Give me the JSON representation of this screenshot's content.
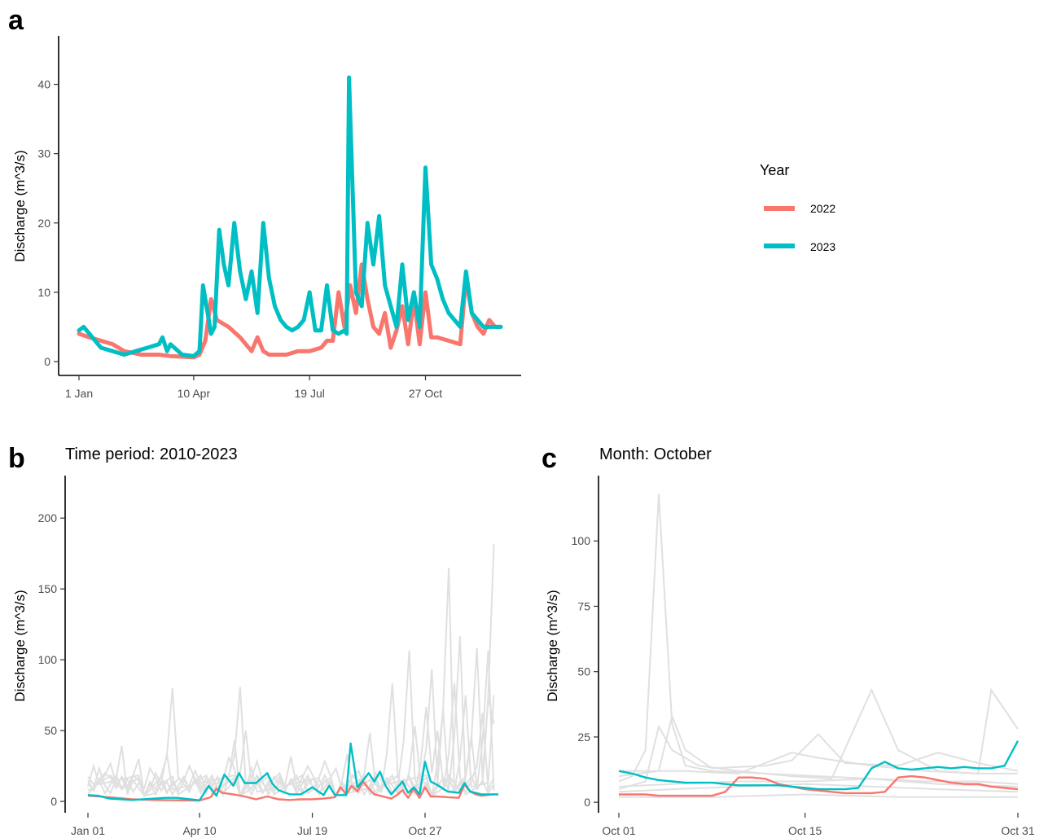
{
  "colors": {
    "y2022": "#F8766D",
    "y2023": "#00BFC4",
    "background_years": "#E0E0E0"
  },
  "legend": {
    "title": "Year",
    "items": [
      "2022",
      "2023"
    ]
  },
  "chart_data": [
    {
      "panel": "a",
      "type": "line",
      "title": "",
      "xlabel": "",
      "ylabel": "Discharge (m^3/s)",
      "x_ticks": [
        "1 Jan",
        "10 Apr",
        "19 Jul",
        "27 Oct"
      ],
      "x_tick_days": [
        1,
        100,
        200,
        300
      ],
      "xlim": [
        1,
        365
      ],
      "y_ticks": [
        0,
        10,
        20,
        30,
        40
      ],
      "ylim": [
        -2,
        47
      ],
      "legend_position": "right",
      "series": [
        {
          "name": "2022",
          "x": [
            1,
            10,
            20,
            30,
            40,
            55,
            70,
            80,
            90,
            100,
            105,
            110,
            115,
            120,
            130,
            140,
            150,
            155,
            160,
            165,
            170,
            180,
            190,
            200,
            210,
            215,
            220,
            225,
            230,
            235,
            240,
            245,
            250,
            255,
            260,
            265,
            270,
            275,
            280,
            285,
            290,
            295,
            300,
            305,
            310,
            320,
            330,
            335,
            340,
            345,
            350,
            355,
            360,
            365
          ],
          "y": [
            4,
            3.5,
            3,
            2.5,
            1.5,
            1,
            1,
            0.8,
            0.7,
            0.6,
            1,
            3,
            9,
            6,
            5,
            3.5,
            1.5,
            3.5,
            1.5,
            1,
            1,
            1,
            1.5,
            1.5,
            2,
            3,
            3,
            10,
            5,
            11,
            7,
            14,
            9,
            5,
            4,
            7,
            2,
            4.5,
            8,
            2.5,
            9,
            2.5,
            10,
            3.5,
            3.5,
            3,
            2.5,
            12,
            7,
            5,
            4,
            6,
            5,
            5
          ]
        },
        {
          "name": "2023",
          "x": [
            1,
            5,
            10,
            20,
            30,
            40,
            50,
            60,
            70,
            73,
            77,
            80,
            90,
            100,
            105,
            108,
            112,
            115,
            118,
            122,
            126,
            130,
            135,
            140,
            145,
            150,
            155,
            160,
            165,
            170,
            175,
            180,
            185,
            190,
            195,
            200,
            205,
            210,
            215,
            220,
            225,
            230,
            232,
            234,
            240,
            245,
            250,
            255,
            260,
            265,
            270,
            275,
            280,
            285,
            290,
            295,
            300,
            305,
            310,
            315,
            320,
            325,
            330,
            335,
            340,
            345,
            350,
            355,
            360,
            365
          ],
          "y": [
            4.5,
            5,
            4,
            2,
            1.5,
            1,
            1.5,
            2,
            2.5,
            3.5,
            1.5,
            2.5,
            1,
            0.8,
            1.5,
            11,
            7,
            4,
            5,
            19,
            14,
            11,
            20,
            13,
            9,
            13,
            7,
            20,
            12,
            8,
            6,
            5,
            4.5,
            5,
            6,
            10,
            4.5,
            4.5,
            11,
            4.5,
            4,
            4.5,
            4,
            41,
            10,
            8,
            20,
            14,
            21,
            11,
            8,
            5,
            14,
            6,
            10,
            5,
            28,
            14,
            12,
            9,
            7,
            6,
            5,
            13,
            7,
            6,
            5,
            5,
            5,
            5
          ]
        }
      ]
    },
    {
      "panel": "b",
      "type": "line",
      "title": "Time period: 2010-2023",
      "xlabel": "",
      "ylabel": "Discharge (m^3/s)",
      "x_ticks": [
        "Jan 01",
        "Apr 10",
        "Jul 19",
        "Oct 27"
      ],
      "x_tick_days": [
        1,
        100,
        200,
        300
      ],
      "xlim": [
        1,
        365
      ],
      "y_ticks": [
        0,
        50,
        100,
        150,
        200
      ],
      "ylim": [
        -8,
        230
      ],
      "background_peaks": [
        [
          [
            10,
            28
          ],
          [
            30,
            47
          ],
          [
            75,
            96
          ],
          [
            130,
            52
          ],
          [
            180,
            38
          ],
          [
            250,
            58
          ],
          [
            305,
            112
          ],
          [
            345,
            130
          ],
          [
            360,
            218
          ]
        ],
        [
          [
            15,
            24
          ],
          [
            45,
            36
          ],
          [
            90,
            30
          ],
          [
            135,
            97
          ],
          [
            195,
            30
          ],
          [
            270,
            100
          ],
          [
            320,
            198
          ],
          [
            350,
            75
          ]
        ],
        [
          [
            8,
            18
          ],
          [
            55,
            28
          ],
          [
            110,
            20
          ],
          [
            128,
            46
          ],
          [
            150,
            34
          ],
          [
            230,
            40
          ],
          [
            285,
            128
          ],
          [
            330,
            140
          ]
        ],
        [
          [
            20,
            32
          ],
          [
            40,
            22
          ],
          [
            85,
            18
          ],
          [
            140,
            60
          ],
          [
            172,
            24
          ],
          [
            240,
            26
          ],
          [
            300,
            80
          ],
          [
            310,
            60
          ],
          [
            340,
            55
          ],
          [
            355,
            128
          ]
        ],
        [
          [
            25,
            16
          ],
          [
            60,
            24
          ],
          [
            102,
            18
          ],
          [
            118,
            20
          ],
          [
            190,
            22
          ],
          [
            222,
            28
          ],
          [
            290,
            64
          ],
          [
            325,
            100
          ],
          [
            358,
            110
          ]
        ],
        [
          [
            5,
            30
          ],
          [
            70,
            40
          ],
          [
            95,
            26
          ],
          [
            145,
            28
          ],
          [
            210,
            34
          ],
          [
            258,
            30
          ],
          [
            315,
            78
          ],
          [
            335,
            90
          ],
          [
            362,
            90
          ]
        ]
      ],
      "series": [
        {
          "name": "2022",
          "x": [
            1,
            20,
            40,
            60,
            80,
            100,
            110,
            115,
            120,
            130,
            140,
            150,
            160,
            170,
            180,
            190,
            200,
            210,
            220,
            225,
            230,
            235,
            240,
            245,
            250,
            255,
            260,
            270,
            275,
            280,
            285,
            290,
            295,
            300,
            305,
            310,
            320,
            330,
            335,
            340,
            345,
            350,
            360,
            365
          ],
          "y": [
            4,
            3,
            1.5,
            1,
            0.8,
            0.6,
            3,
            9,
            6,
            5,
            3.5,
            1.5,
            3.5,
            1.5,
            1,
            1.5,
            1.5,
            2,
            3,
            10,
            5,
            11,
            7,
            14,
            9,
            5,
            4,
            2,
            4.5,
            8,
            2.5,
            9,
            2.5,
            10,
            3.5,
            3.5,
            3,
            2.5,
            12,
            7,
            5,
            4,
            5,
            5
          ]
        },
        {
          "name": "2023",
          "x": [
            1,
            10,
            20,
            40,
            60,
            70,
            80,
            100,
            108,
            115,
            122,
            130,
            135,
            140,
            150,
            160,
            165,
            170,
            180,
            190,
            200,
            210,
            215,
            220,
            230,
            234,
            240,
            250,
            255,
            260,
            265,
            270,
            280,
            285,
            290,
            295,
            300,
            305,
            310,
            320,
            330,
            335,
            340,
            350,
            360,
            365
          ],
          "y": [
            4.5,
            4,
            2,
            1,
            2,
            2.5,
            2.5,
            0.8,
            11,
            4,
            19,
            11,
            20,
            13,
            13,
            20,
            12,
            8,
            5,
            5,
            10,
            4.5,
            11,
            4.5,
            4.5,
            41,
            10,
            20,
            14,
            21,
            11,
            5,
            14,
            6,
            10,
            5,
            28,
            14,
            12,
            7,
            6,
            13,
            7,
            5,
            5,
            5
          ]
        }
      ]
    },
    {
      "panel": "c",
      "type": "line",
      "title": "Month: October",
      "xlabel": "",
      "ylabel": "Discharge (m^3/s)",
      "x_ticks": [
        "Oct 01",
        "Oct 15",
        "Oct 31"
      ],
      "x_tick_days": [
        1,
        15,
        31
      ],
      "xlim": [
        1,
        31
      ],
      "y_ticks": [
        0,
        25,
        50,
        75,
        100
      ],
      "ylim": [
        -4,
        125
      ],
      "background_series": [
        [
          [
            1,
            8
          ],
          [
            2,
            10
          ],
          [
            3,
            20
          ],
          [
            4,
            118
          ],
          [
            5,
            30
          ],
          [
            6,
            14
          ],
          [
            8,
            12
          ],
          [
            12,
            11
          ],
          [
            16,
            10
          ],
          [
            20,
            9
          ],
          [
            24,
            8
          ],
          [
            28,
            8
          ],
          [
            31,
            7
          ]
        ],
        [
          [
            1,
            5
          ],
          [
            3,
            8
          ],
          [
            4,
            29
          ],
          [
            5,
            20
          ],
          [
            7,
            14
          ],
          [
            10,
            12
          ],
          [
            14,
            10
          ],
          [
            17,
            9
          ],
          [
            20,
            43
          ],
          [
            22,
            20
          ],
          [
            25,
            12
          ],
          [
            28,
            11
          ],
          [
            29,
            43
          ],
          [
            31,
            28
          ]
        ],
        [
          [
            1,
            10
          ],
          [
            4,
            12
          ],
          [
            5,
            33
          ],
          [
            6,
            20
          ],
          [
            8,
            13
          ],
          [
            12,
            14
          ],
          [
            14,
            16
          ],
          [
            16,
            26
          ],
          [
            18,
            15
          ],
          [
            22,
            14
          ],
          [
            25,
            19
          ],
          [
            28,
            15
          ],
          [
            31,
            12
          ]
        ],
        [
          [
            1,
            12
          ],
          [
            6,
            12
          ],
          [
            10,
            11
          ],
          [
            14,
            19
          ],
          [
            16,
            17
          ],
          [
            20,
            14
          ],
          [
            24,
            12
          ],
          [
            28,
            11
          ],
          [
            31,
            11
          ]
        ],
        [
          [
            1,
            4
          ],
          [
            5,
            5
          ],
          [
            10,
            6
          ],
          [
            15,
            7
          ],
          [
            20,
            6
          ],
          [
            25,
            5
          ],
          [
            31,
            4
          ]
        ],
        [
          [
            1,
            2
          ],
          [
            8,
            2
          ],
          [
            15,
            3
          ],
          [
            22,
            2
          ],
          [
            31,
            2
          ]
        ],
        [
          [
            1,
            6
          ],
          [
            5,
            7
          ],
          [
            10,
            8
          ],
          [
            15,
            8
          ],
          [
            20,
            9
          ],
          [
            25,
            7
          ],
          [
            31,
            6
          ]
        ]
      ],
      "series": [
        {
          "name": "2022",
          "x": [
            1,
            2,
            3,
            4,
            5,
            6,
            7,
            8,
            9,
            10,
            11,
            12,
            13,
            14,
            15,
            16,
            17,
            18,
            19,
            20,
            21,
            22,
            23,
            24,
            25,
            26,
            27,
            28,
            29,
            30,
            31
          ],
          "y": [
            3,
            3,
            3,
            2.5,
            2.5,
            2.5,
            2.5,
            2.5,
            4,
            9.5,
            9.5,
            9,
            7,
            6,
            5,
            4.5,
            4,
            3.5,
            3.5,
            3.5,
            4,
            9.5,
            10,
            9.5,
            8.5,
            7.5,
            7,
            7,
            6,
            5.5,
            5
          ]
        },
        {
          "name": "2023",
          "x": [
            1,
            2,
            3,
            4,
            5,
            6,
            7,
            8,
            9,
            10,
            11,
            12,
            13,
            14,
            15,
            16,
            17,
            18,
            19,
            20,
            21,
            22,
            23,
            24,
            25,
            26,
            27,
            28,
            29,
            30,
            31
          ],
          "y": [
            12,
            11,
            9.5,
            8.5,
            8,
            7.5,
            7.5,
            7.5,
            7,
            6.5,
            6.5,
            6.5,
            6.5,
            6,
            5.5,
            5,
            5,
            5,
            5.5,
            13,
            15.5,
            13,
            12.5,
            13,
            13.5,
            13,
            13.5,
            13,
            13,
            14,
            23.5
          ]
        }
      ]
    }
  ]
}
